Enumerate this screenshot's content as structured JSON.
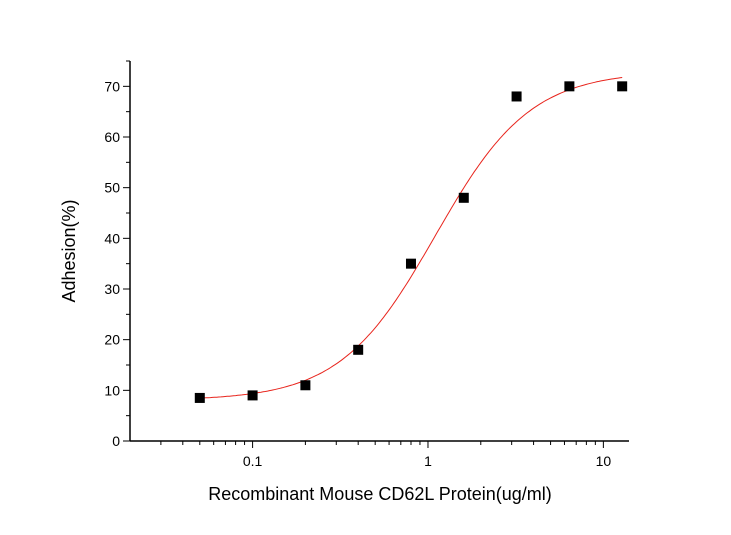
{
  "chart_data": {
    "type": "scatter",
    "title": "",
    "xlabel": "Recombinant Mouse CD62L Protein(ug/ml)",
    "ylabel": "Adhesion(%)",
    "xscale": "log",
    "xlim": [
      0.02,
      14
    ],
    "ylim": [
      0,
      75
    ],
    "xticks": [
      0.1,
      1,
      10
    ],
    "xtick_labels": [
      "0.1",
      "1",
      "10"
    ],
    "yticks": [
      0,
      10,
      20,
      30,
      40,
      50,
      60,
      70
    ],
    "ytick_labels": [
      "0",
      "10",
      "20",
      "30",
      "40",
      "50",
      "60",
      "70"
    ],
    "grid": false,
    "series": [
      {
        "type": "scatter",
        "marker": "square",
        "color": "#000000",
        "x": [
          0.05,
          0.1,
          0.2,
          0.4,
          0.8,
          1.6,
          3.2,
          6.4,
          12.8
        ],
        "y": [
          8.5,
          9,
          11,
          18,
          35,
          48,
          68,
          70,
          70
        ]
      },
      {
        "type": "line",
        "fit": "four-parameter logistic",
        "color": "#e8241c",
        "params": {
          "bottom": 8,
          "top": 73,
          "ec50": 1.1,
          "hill": 1.6
        },
        "x_range": [
          0.05,
          12.8
        ]
      }
    ]
  }
}
